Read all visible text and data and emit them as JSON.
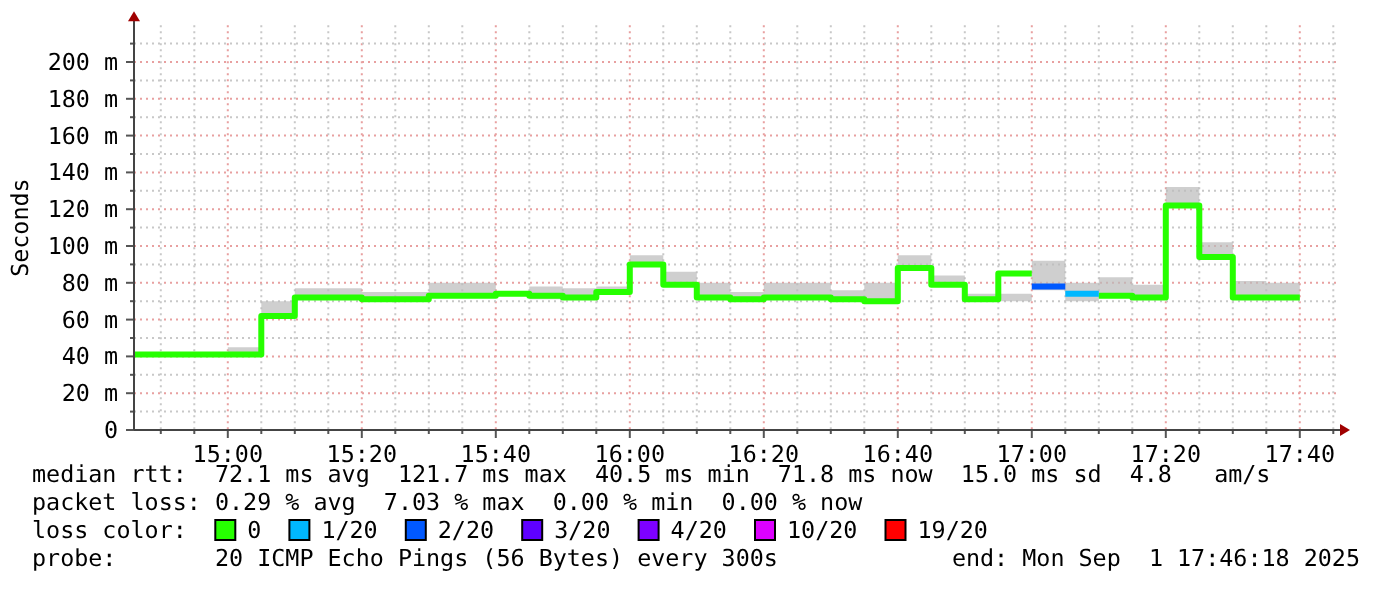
{
  "chart_data": {
    "type": "step",
    "ylabel": "Seconds",
    "x": [
      "2025-09-01T14:46",
      "2025-09-01T15:00",
      "2025-09-01T15:05",
      "2025-09-01T15:10",
      "2025-09-01T15:15",
      "2025-09-01T15:20",
      "2025-09-01T15:25",
      "2025-09-01T15:30",
      "2025-09-01T15:35",
      "2025-09-01T15:40",
      "2025-09-01T15:45",
      "2025-09-01T15:50",
      "2025-09-01T15:55",
      "2025-09-01T16:00",
      "2025-09-01T16:05",
      "2025-09-01T16:10",
      "2025-09-01T16:15",
      "2025-09-01T16:20",
      "2025-09-01T16:25",
      "2025-09-01T16:30",
      "2025-09-01T16:35",
      "2025-09-01T16:40",
      "2025-09-01T16:45",
      "2025-09-01T16:50",
      "2025-09-01T16:55",
      "2025-09-01T17:00",
      "2025-09-01T17:05",
      "2025-09-01T17:10",
      "2025-09-01T17:15",
      "2025-09-01T17:20",
      "2025-09-01T17:25",
      "2025-09-01T17:30",
      "2025-09-01T17:35",
      "2025-09-01T17:40"
    ],
    "series": [
      {
        "name": "0",
        "color": "#26ff00",
        "values": [
          41,
          41,
          62,
          72,
          72,
          71,
          71,
          73,
          73,
          74,
          73,
          72,
          75,
          90,
          79,
          72,
          71,
          72,
          72,
          71,
          70,
          88,
          79,
          71,
          85,
          85,
          null,
          73,
          72,
          122,
          94,
          72,
          72,
          72
        ],
        "lower": [
          null,
          40,
          61,
          71,
          71,
          70,
          70,
          72,
          72,
          73,
          71,
          71,
          74,
          89,
          78,
          71,
          70,
          71,
          71,
          70,
          69,
          87,
          78,
          70,
          70,
          76,
          70,
          72,
          71,
          121,
          93,
          71,
          71,
          71
        ],
        "upper": [
          null,
          45,
          70,
          77,
          77,
          75,
          75,
          80,
          80,
          75,
          78,
          77,
          78,
          95,
          86,
          80,
          75,
          80,
          80,
          76,
          80,
          95,
          84,
          74,
          74,
          92,
          80,
          83,
          79,
          132,
          102,
          81,
          80,
          80
        ]
      },
      {
        "name": "1/20",
        "color": "#00b8ff",
        "x": [
          "2025-09-01T17:05",
          "2025-09-01T17:10"
        ],
        "values": [
          74,
          74
        ]
      },
      {
        "name": "2/20",
        "color": "#0059ff",
        "x": [
          "2025-09-01T17:00",
          "2025-09-01T17:05"
        ],
        "values": [
          78,
          78
        ]
      },
      {
        "name": "3/20",
        "color": "#5e00ff",
        "values": [
          null,
          null,
          null,
          null,
          null,
          null,
          null,
          null,
          null,
          null,
          null,
          null,
          null,
          null,
          null,
          null,
          null,
          null,
          null,
          null,
          null,
          null,
          null,
          null,
          null,
          null,
          null,
          null,
          null,
          null,
          null,
          null,
          null,
          null
        ]
      },
      {
        "name": "4/20",
        "color": "#7e00ff",
        "values": [
          null,
          null,
          null,
          null,
          null,
          null,
          null,
          null,
          null,
          null,
          null,
          null,
          null,
          null,
          null,
          null,
          null,
          null,
          null,
          null,
          null,
          null,
          null,
          null,
          null,
          null,
          null,
          null,
          null,
          null,
          null,
          null,
          null,
          null
        ]
      },
      {
        "name": "10/20",
        "color": "#dd00ff",
        "values": [
          null,
          null,
          null,
          null,
          null,
          null,
          null,
          null,
          null,
          null,
          null,
          null,
          null,
          null,
          null,
          null,
          null,
          null,
          null,
          null,
          null,
          null,
          null,
          null,
          null,
          null,
          null,
          null,
          null,
          null,
          null,
          null,
          null,
          null
        ]
      },
      {
        "name": "19/20",
        "color": "#ff0000",
        "values": [
          null,
          null,
          null,
          null,
          null,
          null,
          null,
          null,
          null,
          null,
          null,
          null,
          null,
          null,
          null,
          null,
          null,
          null,
          null,
          null,
          null,
          null,
          null,
          null,
          null,
          null,
          null,
          null,
          null,
          null,
          null,
          null,
          null,
          null
        ]
      }
    ],
    "xlim": [
      "2025-09-01T14:46",
      "2025-09-01T17:46"
    ],
    "xticks": [
      {
        "value": "2025-09-01T14:50",
        "label": null
      },
      {
        "value": "2025-09-01T14:55",
        "label": null
      },
      {
        "value": "2025-09-01T15:00",
        "label": "15:00"
      },
      {
        "value": "2025-09-01T15:05",
        "label": null
      },
      {
        "value": "2025-09-01T15:10",
        "label": null
      },
      {
        "value": "2025-09-01T15:15",
        "label": null
      },
      {
        "value": "2025-09-01T15:20",
        "label": "15:20"
      },
      {
        "value": "2025-09-01T15:25",
        "label": null
      },
      {
        "value": "2025-09-01T15:30",
        "label": null
      },
      {
        "value": "2025-09-01T15:35",
        "label": null
      },
      {
        "value": "2025-09-01T15:40",
        "label": "15:40"
      },
      {
        "value": "2025-09-01T15:45",
        "label": null
      },
      {
        "value": "2025-09-01T15:50",
        "label": null
      },
      {
        "value": "2025-09-01T15:55",
        "label": null
      },
      {
        "value": "2025-09-01T16:00",
        "label": "16:00"
      },
      {
        "value": "2025-09-01T16:05",
        "label": null
      },
      {
        "value": "2025-09-01T16:10",
        "label": null
      },
      {
        "value": "2025-09-01T16:15",
        "label": null
      },
      {
        "value": "2025-09-01T16:20",
        "label": "16:20"
      },
      {
        "value": "2025-09-01T16:25",
        "label": null
      },
      {
        "value": "2025-09-01T16:30",
        "label": null
      },
      {
        "value": "2025-09-01T16:35",
        "label": null
      },
      {
        "value": "2025-09-01T16:40",
        "label": "16:40"
      },
      {
        "value": "2025-09-01T16:45",
        "label": null
      },
      {
        "value": "2025-09-01T16:50",
        "label": null
      },
      {
        "value": "2025-09-01T16:55",
        "label": null
      },
      {
        "value": "2025-09-01T17:00",
        "label": "17:00"
      },
      {
        "value": "2025-09-01T17:05",
        "label": null
      },
      {
        "value": "2025-09-01T17:10",
        "label": null
      },
      {
        "value": "2025-09-01T17:15",
        "label": null
      },
      {
        "value": "2025-09-01T17:20",
        "label": "17:20"
      },
      {
        "value": "2025-09-01T17:25",
        "label": null
      },
      {
        "value": "2025-09-01T17:30",
        "label": null
      },
      {
        "value": "2025-09-01T17:35",
        "label": null
      },
      {
        "value": "2025-09-01T17:40",
        "label": "17:40"
      },
      {
        "value": "2025-09-01T17:45",
        "label": null
      }
    ],
    "ylim": [
      0,
      220
    ],
    "yticks": [
      0,
      {
        "value": 10,
        "label": null
      },
      {
        "value": 20,
        "label": "20 m"
      },
      {
        "value": 30,
        "label": null
      },
      {
        "value": 40,
        "label": "40 m"
      },
      {
        "value": 50,
        "label": null
      },
      {
        "value": 60,
        "label": "60 m"
      },
      {
        "value": 70,
        "label": null
      },
      {
        "value": 80,
        "label": "80 m"
      },
      {
        "value": 90,
        "label": null
      },
      {
        "value": 100,
        "label": "100 m"
      },
      {
        "value": 110,
        "label": null
      },
      {
        "value": 120,
        "label": "120 m"
      },
      {
        "value": 130,
        "label": null
      },
      {
        "value": 140,
        "label": "140 m"
      },
      {
        "value": 150,
        "label": null
      },
      {
        "value": 160,
        "label": "160 m"
      },
      {
        "value": 170,
        "label": null
      },
      {
        "value": 180,
        "label": "180 m"
      },
      {
        "value": 190,
        "label": null
      },
      {
        "value": 200,
        "label": "200 m"
      },
      {
        "value": 210,
        "label": null
      }
    ],
    "grid": true,
    "legend": "bottom",
    "legend_title": "loss color:",
    "annotations": [
      "median rtt:  72.1 ms avg  121.7 ms max  40.5 ms min  71.8 ms now  15.0 ms sd  4.8   am/s",
      "packet loss: 0.29 % avg  7.03 % max  0.00 % min  0.00 % now",
      "probe:       20 ICMP Echo Pings (56 Bytes) every 300s",
      "end: Mon Sep  1 17:46:18 2025"
    ]
  }
}
